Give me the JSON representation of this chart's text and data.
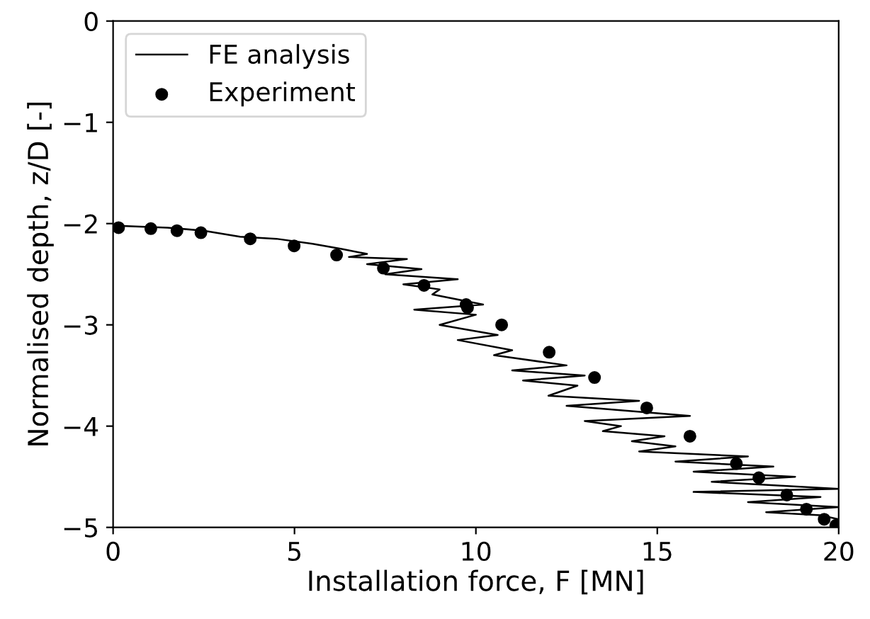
{
  "chart_data": {
    "type": "line",
    "xlabel": "Installation force, F [MN]",
    "ylabel": "Normalised depth, z/D [-]",
    "xlim": [
      0,
      20
    ],
    "xticks": [
      0,
      5,
      10,
      15,
      20
    ],
    "ylim": [
      -5,
      0
    ],
    "yticks": [
      {
        "value": -5,
        "label": "−5"
      },
      {
        "value": -4,
        "label": "−4"
      },
      {
        "value": -3,
        "label": "−3"
      },
      {
        "value": -2,
        "label": "−2"
      },
      {
        "value": -1,
        "label": "−1"
      },
      0
    ],
    "legend": "top left",
    "grid": false,
    "series": [
      {
        "name": "FE analysis",
        "color": "#000000",
        "marker": "none",
        "line_style": "solid",
        "x": [
          0,
          1.5,
          2.5,
          3.5,
          4.5,
          5.5,
          6.3,
          7.0,
          6.5,
          8.1,
          7.0,
          8.5,
          7.5,
          9.5,
          8.0,
          9.0,
          8.8,
          10.2,
          8.3,
          10.0,
          9.0,
          10.6,
          9.5,
          11.0,
          10.5,
          12.5,
          11.0,
          13.0,
          11.3,
          12.8,
          12.0,
          14.5,
          12.5,
          15.9,
          13.0,
          14.0,
          13.5,
          15.2,
          14.3,
          15.5,
          14.5,
          17.5,
          15.5,
          18.2,
          16.0,
          18.8,
          16.5,
          20.0,
          16.0,
          19.5,
          17.5,
          20.0,
          18.0,
          19.5,
          20.0
        ],
        "values": [
          -2.02,
          -2.04,
          -2.07,
          -2.13,
          -2.15,
          -2.2,
          -2.25,
          -2.3,
          -2.33,
          -2.35,
          -2.4,
          -2.45,
          -2.5,
          -2.55,
          -2.6,
          -2.65,
          -2.7,
          -2.8,
          -2.85,
          -2.9,
          -3.0,
          -3.1,
          -3.15,
          -3.25,
          -3.3,
          -3.4,
          -3.45,
          -3.5,
          -3.55,
          -3.6,
          -3.7,
          -3.75,
          -3.8,
          -3.9,
          -3.95,
          -4.0,
          -4.05,
          -4.1,
          -4.15,
          -4.2,
          -4.25,
          -4.3,
          -4.35,
          -4.4,
          -4.45,
          -4.5,
          -4.55,
          -4.62,
          -4.65,
          -4.7,
          -4.75,
          -4.8,
          -4.85,
          -4.88,
          -4.92
        ]
      },
      {
        "name": "Experiment",
        "type": "scatter",
        "color": "#000000",
        "marker": "circle",
        "x": [
          0.15,
          1.04,
          1.76,
          2.42,
          3.78,
          4.99,
          6.16,
          7.45,
          8.57,
          9.73,
          9.77,
          10.71,
          12.02,
          13.27,
          14.71,
          15.9,
          17.18,
          17.8,
          18.57,
          19.11,
          19.6,
          19.92
        ],
        "values": [
          -2.04,
          -2.05,
          -2.07,
          -2.09,
          -2.15,
          -2.22,
          -2.31,
          -2.44,
          -2.61,
          -2.8,
          -2.83,
          -3.0,
          -3.27,
          -3.52,
          -3.82,
          -4.1,
          -4.37,
          -4.51,
          -4.68,
          -4.82,
          -4.92,
          -4.98
        ]
      }
    ]
  }
}
